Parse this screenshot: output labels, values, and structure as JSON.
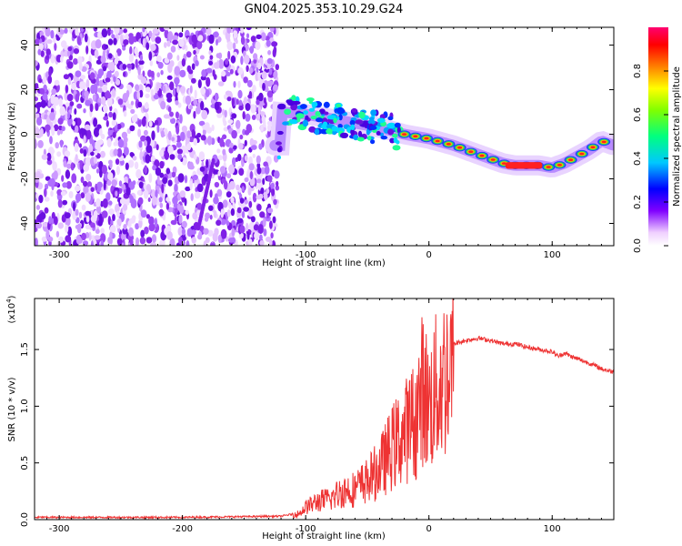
{
  "title": "GN04.2025.353.10.29.G24",
  "chart_data": [
    {
      "type": "heatmap",
      "name": "spectrogram",
      "xlabel": "Height of straight line (km)",
      "ylabel": "Frequency (Hz)",
      "xlim": [
        -320,
        150
      ],
      "ylim": [
        -50,
        48
      ],
      "xticks": [
        -300,
        -200,
        -100,
        0,
        100
      ],
      "xtick_labels": [
        "-300",
        "-200",
        "-100",
        "0",
        "100"
      ],
      "yticks": [
        -40,
        -20,
        0,
        20,
        40
      ],
      "ytick_labels": [
        "-40",
        "-20",
        "0",
        "20",
        "40"
      ],
      "track": {
        "x": [
          -120,
          -100,
          -80,
          -60,
          -40,
          -20,
          0,
          20,
          40,
          60,
          70,
          90,
          100,
          110,
          120,
          130,
          140,
          150
        ],
        "y": [
          10,
          9,
          7,
          5,
          3,
          0,
          -2,
          -5,
          -9,
          -13,
          -14,
          -14,
          -15,
          -13,
          -10,
          -7,
          -3,
          -5
        ]
      },
      "colorbar": {
        "label": "Normalized spectral amplitude",
        "range": [
          0.0,
          1.0
        ],
        "ticks": [
          0.0,
          0.2,
          0.4,
          0.6,
          0.8
        ],
        "tick_labels": [
          "0.0",
          "0.2",
          "0.4",
          "0.6",
          "0.8"
        ]
      }
    },
    {
      "type": "line",
      "name": "snr",
      "xlabel": "Height of straight line (km)",
      "ylabel": "SNR (10 * v/v)",
      "scale_label": "(x10",
      "scale_exp": "4",
      "scale_close": ")",
      "xlim": [
        -320,
        150
      ],
      "ylim": [
        0,
        1.95
      ],
      "xticks": [
        -300,
        -200,
        -100,
        0,
        100
      ],
      "xtick_labels": [
        "-300",
        "-200",
        "-100",
        "0",
        "100"
      ],
      "yticks": [
        0.0,
        0.5,
        1.0,
        1.5
      ],
      "ytick_labels": [
        "0.0",
        "0.5",
        "1.0",
        "1.5"
      ],
      "color": "#ee3333",
      "x": [
        -320,
        -200,
        -120,
        -105,
        -100,
        -90,
        -80,
        -70,
        -60,
        -50,
        -40,
        -30,
        -20,
        -10,
        -5,
        0,
        5,
        10,
        20,
        30,
        40,
        50,
        60,
        70,
        80,
        90,
        100,
        105,
        110,
        115,
        120,
        130,
        140,
        150
      ],
      "y": [
        0.02,
        0.02,
        0.03,
        0.06,
        0.12,
        0.18,
        0.2,
        0.28,
        0.3,
        0.38,
        0.5,
        0.7,
        0.85,
        1.0,
        1.3,
        1.1,
        1.25,
        1.35,
        1.55,
        1.58,
        1.6,
        1.58,
        1.55,
        1.55,
        1.52,
        1.5,
        1.48,
        1.44,
        1.47,
        1.44,
        1.42,
        1.38,
        1.33,
        1.3
      ]
    }
  ]
}
